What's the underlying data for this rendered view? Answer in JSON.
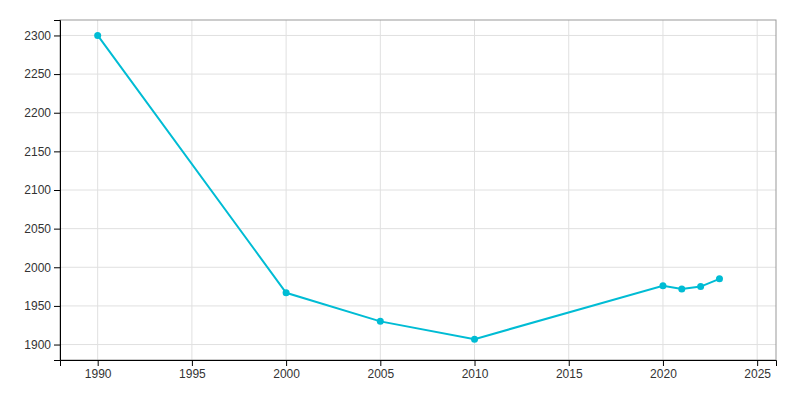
{
  "chart_data": {
    "type": "line",
    "x": [
      1990,
      2000,
      2005,
      2010,
      2020,
      2021,
      2022,
      2023
    ],
    "values": [
      2300,
      1967,
      1930,
      1907,
      1976,
      1972,
      1975,
      1985
    ],
    "color": "#00BCD4",
    "marker": "circle",
    "xlim": [
      1988,
      2026
    ],
    "ylim": [
      1880,
      2320
    ],
    "xticks": [
      1990,
      1995,
      2000,
      2005,
      2010,
      2015,
      2020,
      2025
    ],
    "yticks": [
      1900,
      1950,
      2000,
      2050,
      2100,
      2150,
      2200,
      2250,
      2300
    ],
    "grid": true
  }
}
